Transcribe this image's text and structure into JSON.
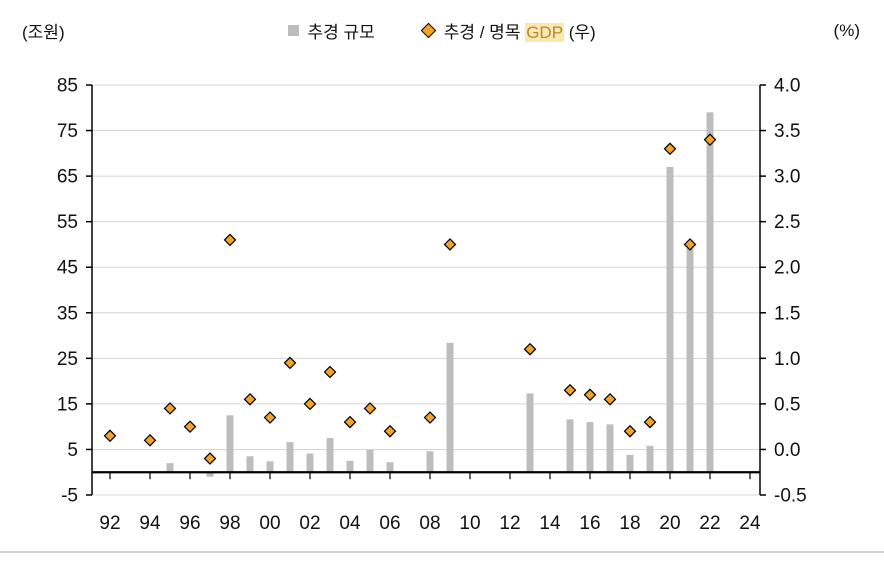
{
  "units": {
    "left": "(조원)",
    "right": "(%)"
  },
  "legend": {
    "bars_label": "추경 규모",
    "ratio_prefix": "추경 / 명목 ",
    "ratio_highlight": "GDP",
    "ratio_suffix": " (우)",
    "ratio_full_label": "추경 / 명목 GDP (우)",
    "bar_color": "#bdbdbd",
    "diamond_color": "#f1a32b",
    "highlight_color": "#fce7b0"
  },
  "chart_data": {
    "type": "combo",
    "title": "",
    "legend_position": "top",
    "grid": true,
    "x_axis": {
      "start_year": 1992,
      "end_year": 2024,
      "ticks": [
        "92",
        "94",
        "96",
        "98",
        "00",
        "02",
        "04",
        "06",
        "08",
        "10",
        "12",
        "14",
        "16",
        "18",
        "20",
        "22",
        "24"
      ]
    },
    "left_axis": {
      "label": "(조원)",
      "min": -5,
      "max": 85,
      "step": 10,
      "ticks": [
        85,
        75,
        65,
        55,
        45,
        35,
        25,
        15,
        5,
        -5
      ]
    },
    "right_axis": {
      "label": "(%)",
      "min": -0.5,
      "max": 4.0,
      "step": 0.5,
      "ticks": [
        "4.0",
        "3.5",
        "3.0",
        "2.5",
        "2.0",
        "1.5",
        "1.0",
        "0.5",
        "0.0",
        "-0.5"
      ]
    },
    "series": [
      {
        "name": "추경 규모",
        "type": "bar",
        "axis": "left",
        "color": "#bdbdbd",
        "points": [
          {
            "year": 1995,
            "value": 2.0
          },
          {
            "year": 1997,
            "value": -1.0
          },
          {
            "year": 1998,
            "value": 12.5
          },
          {
            "year": 1999,
            "value": 3.5
          },
          {
            "year": 2000,
            "value": 2.4
          },
          {
            "year": 2001,
            "value": 6.6
          },
          {
            "year": 2002,
            "value": 4.1
          },
          {
            "year": 2003,
            "value": 7.5
          },
          {
            "year": 2004,
            "value": 2.5
          },
          {
            "year": 2005,
            "value": 4.9
          },
          {
            "year": 2006,
            "value": 2.2
          },
          {
            "year": 2008,
            "value": 4.6
          },
          {
            "year": 2009,
            "value": 28.4
          },
          {
            "year": 2013,
            "value": 17.3
          },
          {
            "year": 2015,
            "value": 11.6
          },
          {
            "year": 2016,
            "value": 11.0
          },
          {
            "year": 2017,
            "value": 10.5
          },
          {
            "year": 2018,
            "value": 3.8
          },
          {
            "year": 2019,
            "value": 5.8
          },
          {
            "year": 2020,
            "value": 67.0
          },
          {
            "year": 2021,
            "value": 50.0
          },
          {
            "year": 2022,
            "value": 79.0
          }
        ]
      },
      {
        "name": "추경 / 명목 GDP (우)",
        "type": "scatter",
        "axis": "right",
        "color": "#f1a32b",
        "stroke": "#000000",
        "points": [
          {
            "year": 1992,
            "value": 0.15
          },
          {
            "year": 1994,
            "value": 0.1
          },
          {
            "year": 1995,
            "value": 0.45
          },
          {
            "year": 1996,
            "value": 0.25
          },
          {
            "year": 1997,
            "value": -0.1
          },
          {
            "year": 1998,
            "value": 2.3
          },
          {
            "year": 1999,
            "value": 0.55
          },
          {
            "year": 2000,
            "value": 0.35
          },
          {
            "year": 2001,
            "value": 0.95
          },
          {
            "year": 2002,
            "value": 0.5
          },
          {
            "year": 2003,
            "value": 0.85
          },
          {
            "year": 2004,
            "value": 0.3
          },
          {
            "year": 2005,
            "value": 0.45
          },
          {
            "year": 2006,
            "value": 0.2
          },
          {
            "year": 2008,
            "value": 0.35
          },
          {
            "year": 2009,
            "value": 2.25
          },
          {
            "year": 2013,
            "value": 1.1
          },
          {
            "year": 2015,
            "value": 0.65
          },
          {
            "year": 2016,
            "value": 0.6
          },
          {
            "year": 2017,
            "value": 0.55
          },
          {
            "year": 2018,
            "value": 0.2
          },
          {
            "year": 2019,
            "value": 0.3
          },
          {
            "year": 2020,
            "value": 3.3
          },
          {
            "year": 2021,
            "value": 2.25
          },
          {
            "year": 2022,
            "value": 3.4
          }
        ]
      }
    ]
  }
}
